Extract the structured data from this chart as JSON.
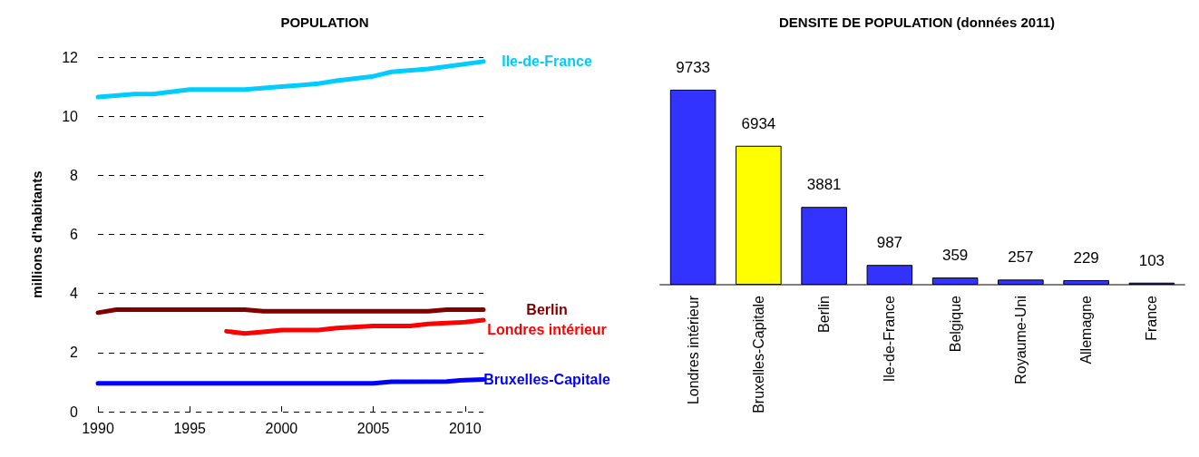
{
  "chart_data": [
    {
      "type": "line",
      "title": "POPULATION",
      "ylabel": "millions d'habitants",
      "xlim": [
        1990,
        2011
      ],
      "xticks": [
        1990,
        1995,
        2000,
        2005,
        2010
      ],
      "ylim": [
        0,
        12
      ],
      "yticks": [
        0,
        2,
        4,
        6,
        8,
        10,
        12
      ],
      "grid": "y",
      "legend": false,
      "marker": "none",
      "line_style": "solid",
      "series": [
        {
          "name": "Ile-de-France",
          "color": "#00ccff",
          "x": [
            1990,
            1992,
            1993,
            1995,
            1998,
            2000,
            2001,
            2002,
            2003,
            2005,
            2006,
            2008,
            2011
          ],
          "values": [
            10.65,
            10.75,
            10.75,
            10.9,
            10.9,
            11.0,
            11.05,
            11.1,
            11.2,
            11.35,
            11.5,
            11.6,
            11.85
          ]
        },
        {
          "name": "Berlin",
          "color": "#800000",
          "x": [
            1990,
            1991,
            1998,
            1999,
            2008,
            2009,
            2011
          ],
          "values": [
            3.35,
            3.45,
            3.45,
            3.4,
            3.4,
            3.45,
            3.45
          ]
        },
        {
          "name": "Londres intérieur",
          "color": "#ff0000",
          "x": [
            1997,
            1998,
            1999,
            2000,
            2002,
            2003,
            2005,
            2007,
            2008,
            2009,
            2010,
            2011
          ],
          "values": [
            2.72,
            2.65,
            2.7,
            2.76,
            2.76,
            2.83,
            2.9,
            2.9,
            2.97,
            3.0,
            3.03,
            3.1
          ]
        },
        {
          "name": "Bruxelles-Capitale",
          "color": "#0000ff",
          "x": [
            1990,
            2005,
            2006,
            2009,
            2010,
            2011
          ],
          "values": [
            0.96,
            0.96,
            1.01,
            1.02,
            1.07,
            1.09
          ]
        }
      ]
    },
    {
      "type": "bar",
      "title": "DENSITE DE POPULATION (données 2011)",
      "categories": [
        "Londres intérieur",
        "Bruxelles-Capitale",
        "Berlin",
        "Ile-de-France",
        "Belgique",
        "Royaume-Uni",
        "Allemagne",
        "France"
      ],
      "values": [
        9733,
        6934,
        3881,
        987,
        359,
        257,
        229,
        103
      ],
      "colors": [
        "#3333ff",
        "#ffff00",
        "#3333ff",
        "#3333ff",
        "#3333ff",
        "#3333ff",
        "#3333ff",
        "#3333ff"
      ],
      "data_labels": true,
      "grid": false,
      "legend": false
    }
  ]
}
